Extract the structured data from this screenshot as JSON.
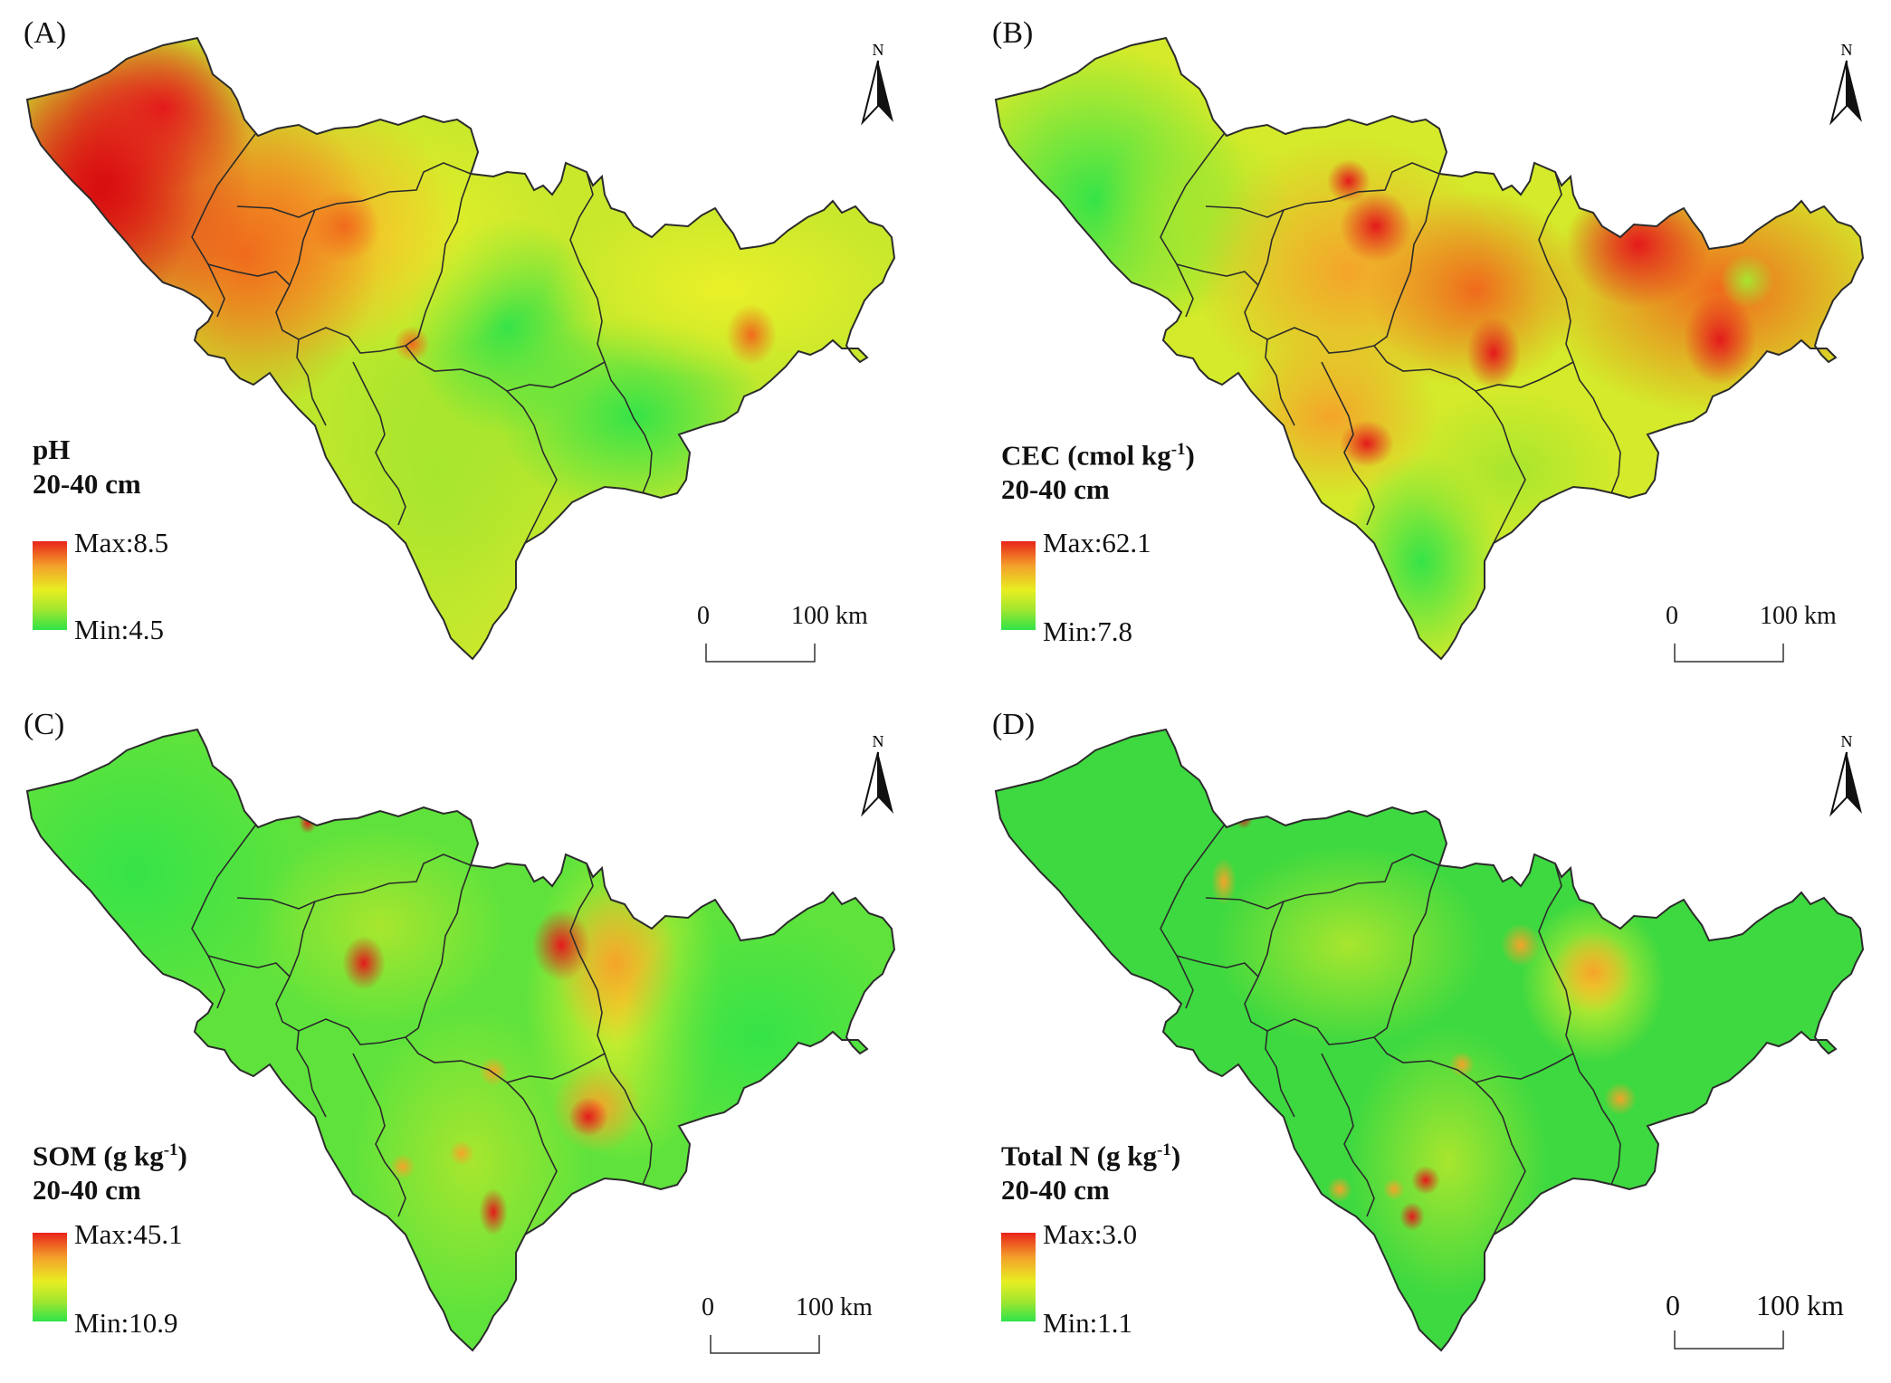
{
  "north_label": "N",
  "scale": {
    "zero": "0",
    "hundred": "100 km"
  },
  "panels": [
    {
      "label": "(A)",
      "var": "pH",
      "unit_pre": "",
      "unit_sup": "",
      "unit_post": "",
      "depth": "20-40 cm",
      "max": "Max:8.5",
      "min": "Min:4.5"
    },
    {
      "label": "(B)",
      "var": "CEC",
      "unit_pre": " (cmol kg",
      "unit_sup": "-1",
      "unit_post": ")",
      "depth": "20-40 cm",
      "max": "Max:62.1",
      "min": "Min:7.8"
    },
    {
      "label": "(C)",
      "var": "SOM",
      "unit_pre": " (g kg",
      "unit_sup": "-1",
      "unit_post": ")",
      "depth": "20-40 cm",
      "max": "Max:45.1",
      "min": "Min:10.9"
    },
    {
      "label": "(D)",
      "var": "Total N",
      "unit_pre": " (g kg",
      "unit_sup": "-1",
      "unit_post": ")",
      "depth": "20-40 cm",
      "max": "Max:3.0",
      "min": "Min:1.1"
    }
  ],
  "colors": {
    "max": "#e8231a",
    "mid": "#e8ee22",
    "min": "#2fe34a",
    "border": "#2b2b2b"
  }
}
